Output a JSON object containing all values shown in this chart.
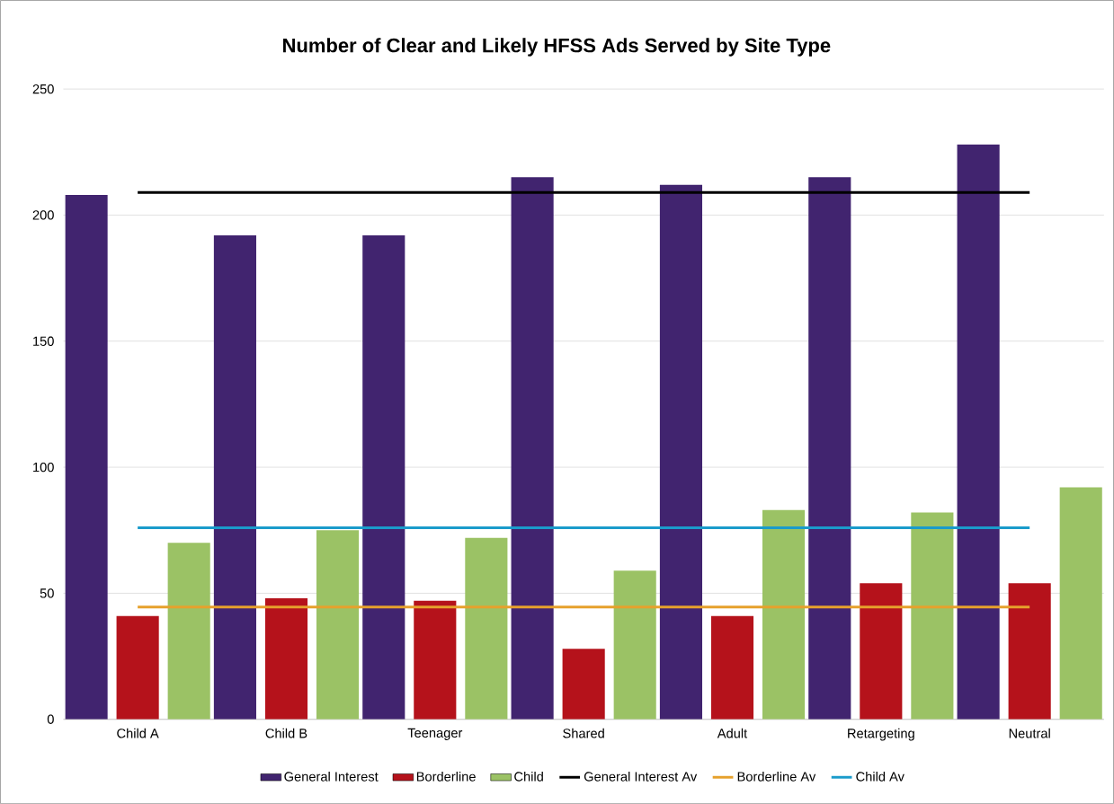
{
  "chart_data": {
    "type": "bar",
    "title": "Number of Clear and Likely HFSS Ads Served by Site Type",
    "categories": [
      "Child A",
      "Child B",
      "Teenager",
      "Shared",
      "Adult",
      "Retargeting",
      "Neutral"
    ],
    "series": [
      {
        "name": "General Interest",
        "color": "#41246f",
        "values": [
          208,
          192,
          192,
          215,
          212,
          215,
          228
        ]
      },
      {
        "name": "Borderline",
        "color": "#b5121b",
        "values": [
          41,
          48,
          47,
          28,
          41,
          54,
          54
        ]
      },
      {
        "name": "Child",
        "color": "#9bc265",
        "values": [
          70,
          75,
          72,
          59,
          83,
          82,
          92
        ]
      },
      {
        "name": "General Interest Av",
        "type": "line",
        "color": "#000000",
        "values": [
          209,
          209,
          209,
          209,
          209,
          209,
          209
        ]
      },
      {
        "name": "Borderline Av",
        "type": "line",
        "color": "#e6a12c",
        "values": [
          44.5,
          44.5,
          44.5,
          44.5,
          44.5,
          44.5,
          44.5
        ]
      },
      {
        "name": "Child Av",
        "type": "line",
        "color": "#1a9bcb",
        "values": [
          76,
          76,
          76,
          76,
          76,
          76,
          76
        ]
      }
    ],
    "ylim": [
      0,
      250
    ],
    "yticks": [
      0,
      50,
      100,
      150,
      200,
      250
    ],
    "grid": "y",
    "legend": "bottom",
    "marker": "none"
  }
}
